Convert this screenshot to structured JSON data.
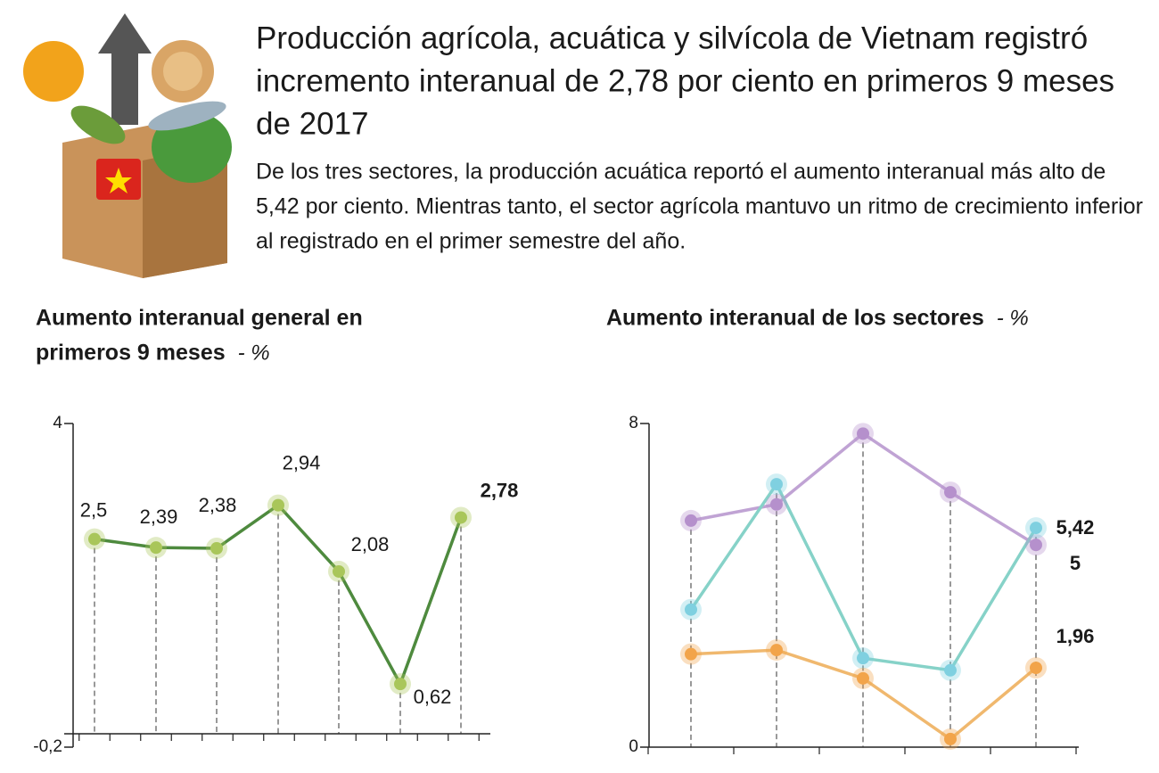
{
  "header": {
    "title": "Producción agrícola, acuática y silvícola de Vietnam registró incremento interanual de 2,78 por ciento en primeros 9 meses de 2017",
    "subtitle": "De los tres sectores, la producción acuática reportó el aumento interanual más alto de 5,42 por ciento. Mientras tanto, el sector agrícola mantuvo un ritmo de crecimiento inferior al registrado en el primer semestre del año."
  },
  "chart_data": [
    {
      "type": "line",
      "title": "Aumento interanual general en primeros 9 meses",
      "unit": "- %",
      "categories": [
        null,
        null,
        null,
        null,
        null,
        null,
        null
      ],
      "series": [
        {
          "color": "#4e8a3e",
          "marker_color": "#a9c65a",
          "values": [
            2.5,
            2.39,
            2.38,
            2.94,
            2.08,
            0.62,
            2.78
          ],
          "value_labels": [
            "2,5",
            "2,39",
            "2,38",
            "2,94",
            "2,08",
            "0,62",
            "2,78"
          ]
        }
      ],
      "ylim": [
        -0.2,
        4
      ],
      "yticks": [
        {
          "value": -0.2,
          "label": "-0,2"
        },
        4
      ]
    },
    {
      "type": "line",
      "title": "Aumento interanual de los sectores",
      "unit": "- %",
      "categories": [
        null,
        null,
        null,
        null,
        null
      ],
      "series": [
        {
          "color": "#c0a3d4",
          "marker_color": "#b590cc",
          "values": [
            5.6,
            6.0,
            7.75,
            6.3,
            5
          ],
          "value_labels": [
            null,
            null,
            null,
            null,
            "5"
          ]
        },
        {
          "color": "#86d2c8",
          "marker_color": "#7fd0e0",
          "values": [
            3.4,
            6.5,
            2.2,
            1.9,
            5.42
          ],
          "value_labels": [
            null,
            null,
            null,
            null,
            "5,42"
          ]
        },
        {
          "color": "#f0b86e",
          "marker_color": "#f2a44a",
          "values": [
            2.3,
            2.4,
            1.7,
            0.2,
            1.96
          ],
          "value_labels": [
            null,
            null,
            null,
            null,
            "1,96"
          ]
        }
      ],
      "ylim": [
        0,
        8
      ],
      "yticks": [
        0,
        8
      ]
    }
  ]
}
